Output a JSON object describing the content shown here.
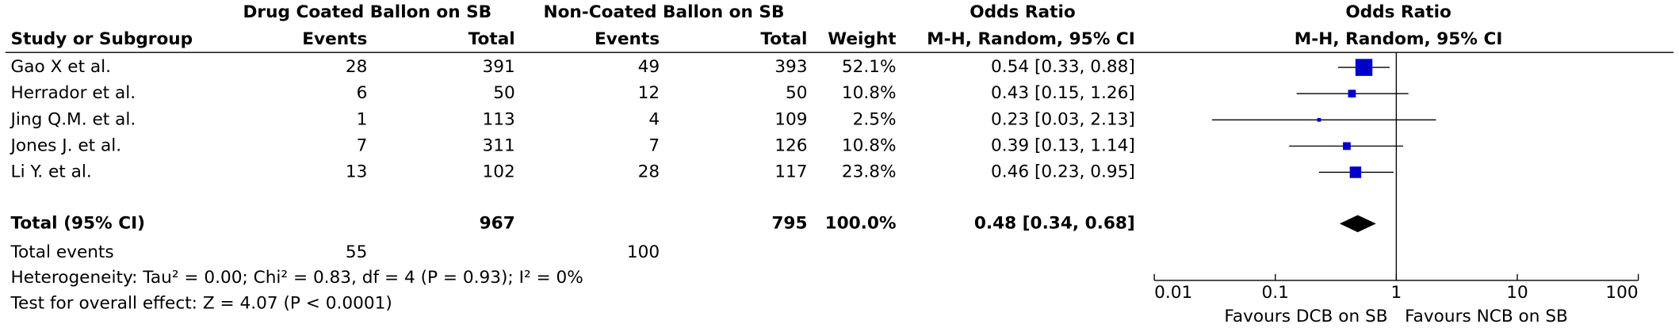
{
  "chart_data": {
    "type": "forest",
    "group_headers": [
      "Drug Coated Ballon on SB",
      "Non-Coated Ballon on SB"
    ],
    "or_header": "Odds Ratio",
    "columns": [
      "Study or Subgroup",
      "Events",
      "Total",
      "Events",
      "Total",
      "Weight",
      "M-H, Random, 95% CI"
    ],
    "plot_header": [
      "Odds Ratio",
      "M-H, Random, 95% CI"
    ],
    "studies": [
      {
        "name": "Gao X et al.",
        "events1": 28,
        "total1": 391,
        "events2": 49,
        "total2": 393,
        "weight": 52.1,
        "weight_label": "52.1%",
        "or": 0.54,
        "lower": 0.33,
        "upper": 0.88,
        "ci_label": "0.54 [0.33, 0.88]"
      },
      {
        "name": "Herrador et al.",
        "events1": 6,
        "total1": 50,
        "events2": 12,
        "total2": 50,
        "weight": 10.8,
        "weight_label": "10.8%",
        "or": 0.43,
        "lower": 0.15,
        "upper": 1.26,
        "ci_label": "0.43 [0.15, 1.26]"
      },
      {
        "name": "Jing Q.M. et al.",
        "events1": 1,
        "total1": 113,
        "events2": 4,
        "total2": 109,
        "weight": 2.5,
        "weight_label": "2.5%",
        "or": 0.23,
        "lower": 0.03,
        "upper": 2.13,
        "ci_label": "0.23 [0.03, 2.13]"
      },
      {
        "name": "Jones J. et al.",
        "events1": 7,
        "total1": 311,
        "events2": 7,
        "total2": 126,
        "weight": 10.8,
        "weight_label": "10.8%",
        "or": 0.39,
        "lower": 0.13,
        "upper": 1.14,
        "ci_label": "0.39 [0.13, 1.14]"
      },
      {
        "name": "Li Y. et al.",
        "events1": 13,
        "total1": 102,
        "events2": 28,
        "total2": 117,
        "weight": 23.8,
        "weight_label": "23.8%",
        "or": 0.46,
        "lower": 0.23,
        "upper": 0.95,
        "ci_label": "0.46 [0.23, 0.95]"
      }
    ],
    "total": {
      "name": "Total (95% CI)",
      "total1": 967,
      "total2": 795,
      "weight": 100,
      "weight_label": "100.0%",
      "or": 0.48,
      "lower": 0.34,
      "upper": 0.68,
      "ci_label": "0.48 [0.34, 0.68]"
    },
    "total_events": {
      "label": "Total events",
      "events1": 55,
      "events2": 100
    },
    "heterogeneity": "Heterogeneity: Tau² = 0.00; Chi² = 0.83, df = 4 (P = 0.93); I² = 0%",
    "overall_effect": "Test for overall effect: Z = 4.07 (P < 0.0001)",
    "log_scale": true,
    "xlim": [
      0.01,
      100
    ],
    "xticks": [
      0.01,
      0.1,
      1,
      10,
      100
    ],
    "favours": [
      "Favours DCB on SB",
      "Favours NCB on SB"
    ],
    "color": "#0000cc"
  }
}
